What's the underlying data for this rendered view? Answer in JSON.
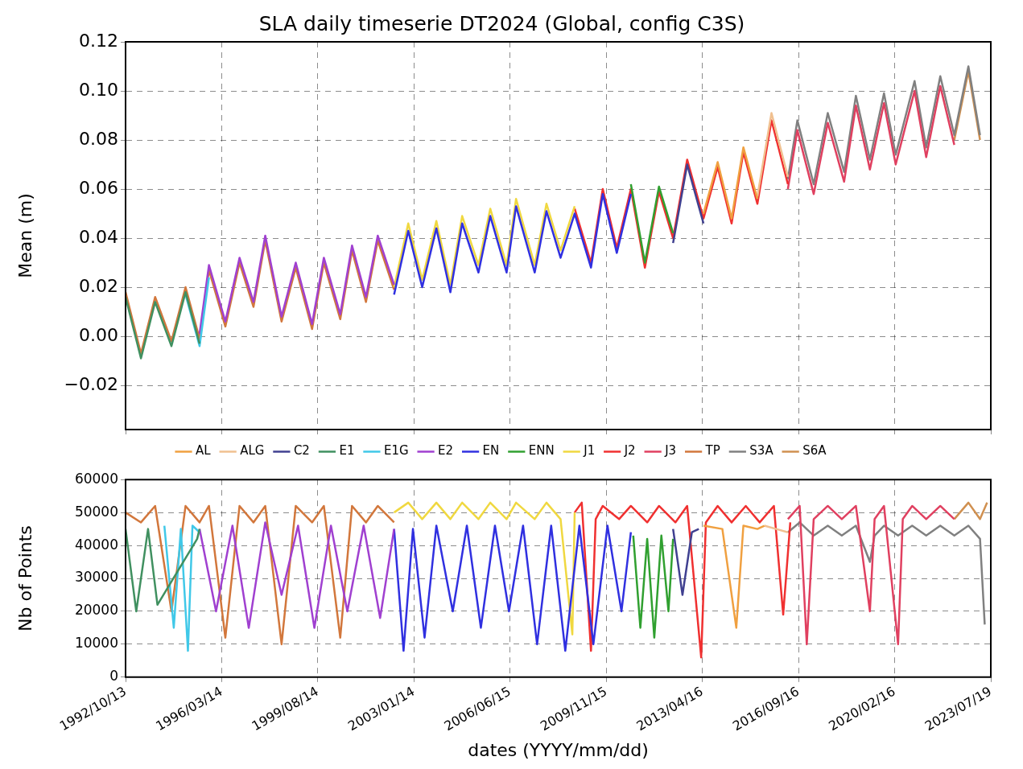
{
  "chart_data": [
    {
      "type": "line",
      "title": "SLA daily timeserie DT2024 (Global, config C3S)",
      "ylabel": "Mean (m)",
      "xlim": [
        "1992-10-13",
        "2023-07-19"
      ],
      "xticks": [
        {
          "value": "1992-10-13",
          "label": null
        },
        {
          "value": "1996-03-14",
          "label": null
        },
        {
          "value": "1999-08-14",
          "label": null
        },
        {
          "value": "2003-01-14",
          "label": null
        },
        {
          "value": "2006-06-15",
          "label": null
        },
        {
          "value": "2009-11-15",
          "label": null
        },
        {
          "value": "2013-04-16",
          "label": null
        },
        {
          "value": "2016-09-16",
          "label": null
        },
        {
          "value": "2020-02-16",
          "label": null
        },
        {
          "value": "2023-07-19",
          "label": null
        }
      ],
      "ylim": [
        -0.038,
        0.12
      ],
      "yticks": [
        {
          "value": -0.02,
          "label": "−0.02"
        },
        {
          "value": 0,
          "label": "0.00"
        },
        {
          "value": 0.02,
          "label": "0.02"
        },
        {
          "value": 0.04,
          "label": "0.04"
        },
        {
          "value": 0.06,
          "label": "0.06"
        },
        {
          "value": 0.08,
          "label": "0.08"
        },
        {
          "value": 0.1,
          "label": "0.10"
        },
        {
          "value": 0.12,
          "label": "0.12"
        }
      ],
      "tick_labels": "y",
      "grid": true,
      "legend": "bottom",
      "marker": "none",
      "line_style": "solid",
      "series": [
        {
          "name": "AL",
          "color": "#f0a040",
          "x": [
            "2013-05",
            "2013-11",
            "2014-05",
            "2014-10",
            "2015-04"
          ],
          "values": [
            0.05,
            0.071,
            0.048,
            0.077,
            0.056
          ]
        },
        {
          "name": "ALG",
          "color": "#f0c090",
          "x": [
            "2015-04",
            "2015-10",
            "2016-05"
          ],
          "values": [
            0.057,
            0.091,
            0.065
          ]
        },
        {
          "name": "C2",
          "color": "#404090",
          "x": [
            "2012-04",
            "2012-10",
            "2013-05"
          ],
          "values": [
            0.038,
            0.07,
            0.046
          ]
        },
        {
          "name": "E1",
          "color": "#409060",
          "x": [
            "1992-10-13",
            "1993-05",
            "1993-11",
            "1994-06",
            "1994-12",
            "1995-06"
          ],
          "values": [
            0.016,
            -0.009,
            0.014,
            -0.004,
            0.018,
            -0.003
          ]
        },
        {
          "name": "E1G",
          "color": "#40c8e8",
          "x": [
            "1994-12",
            "1995-06",
            "1995-10"
          ],
          "values": [
            0.017,
            -0.004,
            0.024
          ]
        },
        {
          "name": "E2",
          "color": "#a040d0",
          "x": [
            "1995-06",
            "1995-10",
            "1996-05",
            "1996-11",
            "1997-05",
            "1997-10",
            "1998-05",
            "1998-11",
            "1999-06",
            "1999-11",
            "2000-06",
            "2000-11",
            "2001-05",
            "2001-10",
            "2002-05"
          ],
          "values": [
            0.001,
            0.029,
            0.006,
            0.032,
            0.014,
            0.041,
            0.008,
            0.03,
            0.005,
            0.032,
            0.009,
            0.037,
            0.016,
            0.041,
            0.021
          ]
        },
        {
          "name": "EN",
          "color": "#3030e0",
          "x": [
            "2002-05",
            "2002-11",
            "2003-05",
            "2003-11",
            "2004-05",
            "2004-10",
            "2005-05",
            "2005-10",
            "2006-05",
            "2006-09",
            "2007-05",
            "2007-10",
            "2008-04",
            "2008-10",
            "2009-05",
            "2009-10",
            "2010-04",
            "2010-10"
          ],
          "values": [
            0.017,
            0.043,
            0.02,
            0.044,
            0.018,
            0.046,
            0.026,
            0.049,
            0.026,
            0.053,
            0.026,
            0.051,
            0.032,
            0.05,
            0.028,
            0.058,
            0.034,
            0.058
          ]
        },
        {
          "name": "ENN",
          "color": "#30a030",
          "x": [
            "2010-10",
            "2011-04",
            "2011-10",
            "2012-04"
          ],
          "values": [
            0.062,
            0.03,
            0.061,
            0.042
          ]
        },
        {
          "name": "J1",
          "color": "#f0d840",
          "x": [
            "2002-05",
            "2002-11",
            "2003-05",
            "2003-11",
            "2004-05",
            "2004-10",
            "2005-05",
            "2005-10",
            "2006-05",
            "2006-09",
            "2007-05",
            "2007-10",
            "2008-04",
            "2008-10"
          ],
          "values": [
            0.02,
            0.046,
            0.023,
            0.047,
            0.021,
            0.049,
            0.029,
            0.052,
            0.029,
            0.056,
            0.029,
            0.054,
            0.035,
            0.053
          ]
        },
        {
          "name": "J2",
          "color": "#f03030",
          "x": [
            "2008-10",
            "2009-05",
            "2009-10",
            "2010-04",
            "2010-10",
            "2011-04",
            "2011-10",
            "2012-04",
            "2012-10",
            "2013-05",
            "2013-11",
            "2014-05",
            "2014-10",
            "2015-04",
            "2015-10",
            "2016-05"
          ],
          "values": [
            0.052,
            0.03,
            0.06,
            0.036,
            0.06,
            0.028,
            0.059,
            0.04,
            0.072,
            0.048,
            0.069,
            0.046,
            0.075,
            0.054,
            0.088,
            0.062
          ]
        },
        {
          "name": "J3",
          "color": "#e04060",
          "x": [
            "2016-05",
            "2016-09",
            "2017-04",
            "2017-10",
            "2018-05",
            "2018-10",
            "2019-04",
            "2019-10",
            "2020-03",
            "2020-11",
            "2021-04",
            "2021-10",
            "2022-04"
          ],
          "values": [
            0.06,
            0.084,
            0.058,
            0.087,
            0.063,
            0.094,
            0.068,
            0.095,
            0.07,
            0.1,
            0.073,
            0.102,
            0.078
          ]
        },
        {
          "name": "TP",
          "color": "#d2773c",
          "x": [
            "1992-10-13",
            "1993-05",
            "1993-11",
            "1994-06",
            "1994-12",
            "1995-06",
            "1995-10",
            "1996-05",
            "1996-11",
            "1997-05",
            "1997-10",
            "1998-05",
            "1998-11",
            "1999-06",
            "1999-11",
            "2000-06",
            "2000-11",
            "2001-05",
            "2001-10",
            "2002-05"
          ],
          "values": [
            0.018,
            -0.007,
            0.016,
            -0.002,
            0.02,
            -0.001,
            0.027,
            0.004,
            0.03,
            0.012,
            0.039,
            0.006,
            0.028,
            0.003,
            0.03,
            0.007,
            0.035,
            0.014,
            0.039,
            0.019
          ]
        },
        {
          "name": "S3A",
          "color": "#808080",
          "x": [
            "2016-05",
            "2016-09",
            "2017-04",
            "2017-10",
            "2018-05",
            "2018-10",
            "2019-04",
            "2019-10",
            "2020-03",
            "2020-11",
            "2021-04",
            "2021-10",
            "2022-04",
            "2022-10",
            "2023-03"
          ],
          "values": [
            0.064,
            0.088,
            0.062,
            0.091,
            0.067,
            0.098,
            0.072,
            0.099,
            0.074,
            0.104,
            0.077,
            0.106,
            0.082,
            0.11,
            0.082
          ]
        },
        {
          "name": "S6A",
          "color": "#d09050",
          "x": [
            "2022-04",
            "2022-10",
            "2023-03"
          ],
          "values": [
            0.08,
            0.108,
            0.08
          ]
        }
      ]
    },
    {
      "type": "line",
      "xlabel": "dates (YYYY/mm/dd)",
      "ylabel": "Nb of Points",
      "xlim": [
        "1992-10-13",
        "2023-07-19"
      ],
      "xticks": [
        {
          "value": "1992-10-13",
          "label": "1992/10/13"
        },
        {
          "value": "1996-03-14",
          "label": "1996/03/14"
        },
        {
          "value": "1999-08-14",
          "label": "1999/08/14"
        },
        {
          "value": "2003-01-14",
          "label": "2003/01/14"
        },
        {
          "value": "2006-06-15",
          "label": "2006/06/15"
        },
        {
          "value": "2009-11-15",
          "label": "2009/11/15"
        },
        {
          "value": "2013-04-16",
          "label": "2013/04/16"
        },
        {
          "value": "2016-09-16",
          "label": "2016/09/16"
        },
        {
          "value": "2020-02-16",
          "label": "2020/02/16"
        },
        {
          "value": "2023-07-19",
          "label": "2023/07/19"
        }
      ],
      "ylim": [
        0,
        60000
      ],
      "yticks": [
        0,
        10000,
        20000,
        30000,
        40000,
        50000,
        60000
      ],
      "grid": true,
      "marker": "none",
      "line_style": "solid",
      "series": [
        {
          "color": "#f0a040",
          "x": [
            "2013-05",
            "2014-01",
            "2014-07",
            "2014-10",
            "2015-04",
            "2015-07"
          ],
          "values": [
            46000,
            45000,
            15000,
            46000,
            45000,
            46000
          ]
        },
        {
          "color": "#f0c090",
          "x": [
            "2015-07",
            "2015-12",
            "2016-05"
          ],
          "values": [
            46000,
            45000,
            44000
          ]
        },
        {
          "color": "#404090",
          "x": [
            "2012-04",
            "2012-08",
            "2012-12",
            "2013-03"
          ],
          "values": [
            45000,
            25000,
            44000,
            45000
          ]
        },
        {
          "color": "#409060",
          "x": [
            "1992-10-13",
            "1993-03",
            "1993-08",
            "1993-12",
            "1995-05",
            "1995-06"
          ],
          "values": [
            45000,
            20000,
            45000,
            22000,
            42000,
            45000
          ]
        },
        {
          "color": "#40c8e8",
          "x": [
            "1994-03",
            "1994-07",
            "1994-10",
            "1995-01",
            "1995-03",
            "1995-06"
          ],
          "values": [
            46000,
            15000,
            45000,
            8000,
            46000,
            44000
          ]
        },
        {
          "color": "#a040d0",
          "x": [
            "1995-06",
            "1996-01",
            "1996-08",
            "1997-03",
            "1997-10",
            "1998-05",
            "1998-12",
            "1999-07",
            "2000-02",
            "2000-09",
            "2001-04",
            "2001-11",
            "2002-05"
          ],
          "values": [
            45000,
            20000,
            46000,
            15000,
            47000,
            25000,
            46000,
            15000,
            46000,
            20000,
            46000,
            18000,
            45000
          ]
        },
        {
          "color": "#3030e0",
          "x": [
            "2002-05",
            "2002-09",
            "2003-01",
            "2003-06",
            "2003-11",
            "2004-06",
            "2004-12",
            "2005-06",
            "2005-12",
            "2006-06",
            "2006-12",
            "2007-06",
            "2007-12",
            "2008-06",
            "2008-12",
            "2009-06",
            "2009-12",
            "2010-06",
            "2010-10"
          ],
          "values": [
            45000,
            8000,
            45000,
            12000,
            46000,
            20000,
            46000,
            15000,
            46000,
            20000,
            46000,
            10000,
            46000,
            8000,
            46000,
            10000,
            46000,
            20000,
            44000
          ]
        },
        {
          "color": "#30a030",
          "x": [
            "2010-11",
            "2011-02",
            "2011-05",
            "2011-08",
            "2011-11",
            "2012-02",
            "2012-04"
          ],
          "values": [
            43000,
            15000,
            42000,
            12000,
            43000,
            20000,
            42000
          ]
        },
        {
          "color": "#f0d840",
          "x": [
            "2002-05",
            "2002-11",
            "2003-05",
            "2003-11",
            "2004-05",
            "2004-10",
            "2005-05",
            "2005-10",
            "2006-05",
            "2006-09",
            "2007-05",
            "2007-10",
            "2008-04",
            "2008-09",
            "2008-10"
          ],
          "values": [
            50000,
            53000,
            48000,
            53000,
            48000,
            53000,
            48000,
            53000,
            48000,
            53000,
            48000,
            53000,
            48000,
            13000,
            50000
          ]
        },
        {
          "color": "#f03030",
          "x": [
            "2008-10",
            "2009-01",
            "2009-05",
            "2009-07",
            "2009-10",
            "2010-05",
            "2010-10",
            "2011-05",
            "2011-10",
            "2012-05",
            "2012-10",
            "2013-04",
            "2013-06",
            "2013-11",
            "2014-05",
            "2014-11",
            "2015-05",
            "2015-11",
            "2016-03",
            "2016-06"
          ],
          "values": [
            50000,
            53000,
            8000,
            48000,
            52000,
            48000,
            52000,
            47000,
            52000,
            47000,
            52000,
            6000,
            47000,
            52000,
            47000,
            52000,
            47000,
            52000,
            19000,
            47000
          ]
        },
        {
          "color": "#e04060",
          "x": [
            "2016-05",
            "2016-10",
            "2017-01",
            "2017-04",
            "2017-10",
            "2018-04",
            "2018-10",
            "2019-04",
            "2019-06",
            "2019-10",
            "2020-04",
            "2020-06",
            "2020-10",
            "2021-04",
            "2021-10",
            "2022-04"
          ],
          "values": [
            48000,
            52000,
            10000,
            48000,
            52000,
            48000,
            52000,
            20000,
            48000,
            52000,
            10000,
            48000,
            52000,
            48000,
            52000,
            48000
          ]
        },
        {
          "color": "#d2773c",
          "x": [
            "1992-10-13",
            "1993-05",
            "1993-11",
            "1994-06",
            "1994-12",
            "1995-06",
            "1995-10",
            "1996-05",
            "1996-11",
            "1997-05",
            "1997-10",
            "1998-05",
            "1998-11",
            "1999-06",
            "1999-11",
            "2000-06",
            "2000-11",
            "2001-05",
            "2001-10",
            "2002-05"
          ],
          "values": [
            50000,
            47000,
            52000,
            20000,
            52000,
            47000,
            52000,
            12000,
            52000,
            47000,
            52000,
            10000,
            52000,
            47000,
            52000,
            12000,
            52000,
            47000,
            52000,
            47000
          ]
        },
        {
          "color": "#808080",
          "x": [
            "2016-05",
            "2016-10",
            "2017-04",
            "2017-10",
            "2018-04",
            "2018-10",
            "2019-04",
            "2019-06",
            "2019-10",
            "2020-04",
            "2020-10",
            "2021-04",
            "2021-10",
            "2022-04",
            "2022-10",
            "2023-03",
            "2023-05"
          ],
          "values": [
            44000,
            47000,
            43000,
            46000,
            43000,
            46000,
            35000,
            43000,
            46000,
            43000,
            46000,
            43000,
            46000,
            43000,
            46000,
            42000,
            16000
          ]
        },
        {
          "color": "#d09050",
          "x": [
            "2022-04",
            "2022-10",
            "2023-03",
            "2023-06"
          ],
          "values": [
            48000,
            53000,
            48000,
            53000
          ]
        }
      ]
    }
  ]
}
